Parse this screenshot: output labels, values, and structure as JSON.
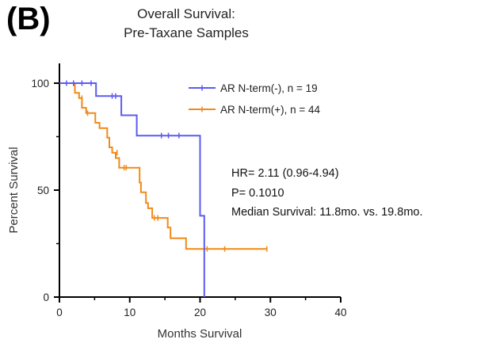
{
  "panel_label": "(B)",
  "chart_data": {
    "type": "line",
    "subtype": "kaplan-meier",
    "title_lines": [
      "Overall Survival:",
      "Pre-Taxane Samples"
    ],
    "xlabel": "Months Survival",
    "ylabel": "Percent Survival",
    "xlim": [
      0,
      40
    ],
    "ylim": [
      0,
      100
    ],
    "x_ticks": [
      0,
      10,
      20,
      30,
      40
    ],
    "y_ticks": [
      0,
      50,
      100
    ],
    "grid": false,
    "legend_position": "top-right",
    "series": [
      {
        "name": "AR N-term(-), n = 19",
        "color": "#5b5bf0",
        "steps": [
          [
            0,
            100
          ],
          [
            5.2,
            100
          ],
          [
            5.2,
            94
          ],
          [
            8.8,
            94
          ],
          [
            8.8,
            85
          ],
          [
            11.0,
            85
          ],
          [
            11.0,
            75.5
          ],
          [
            20.0,
            75.5
          ],
          [
            20.0,
            38
          ],
          [
            20.6,
            38
          ],
          [
            20.6,
            0
          ]
        ],
        "censored": [
          [
            1.0,
            100
          ],
          [
            2.0,
            100
          ],
          [
            3.2,
            100
          ],
          [
            4.5,
            100
          ],
          [
            7.5,
            94
          ],
          [
            8.0,
            94
          ],
          [
            14.5,
            75.5
          ],
          [
            15.5,
            75.5
          ],
          [
            17.0,
            75.5
          ]
        ]
      },
      {
        "name": "AR N-term(+), n = 44",
        "color": "#f08a1a",
        "steps": [
          [
            0,
            100
          ],
          [
            2.2,
            100
          ],
          [
            2.2,
            95.5
          ],
          [
            2.8,
            95.5
          ],
          [
            2.8,
            93
          ],
          [
            3.2,
            93
          ],
          [
            3.2,
            88.5
          ],
          [
            3.8,
            88.5
          ],
          [
            3.8,
            86
          ],
          [
            5.1,
            86
          ],
          [
            5.1,
            81.5
          ],
          [
            5.7,
            81.5
          ],
          [
            5.7,
            79
          ],
          [
            6.8,
            79
          ],
          [
            6.8,
            74.5
          ],
          [
            7.1,
            74.5
          ],
          [
            7.1,
            70
          ],
          [
            7.5,
            70
          ],
          [
            7.5,
            67.5
          ],
          [
            8.0,
            67.5
          ],
          [
            8.0,
            65
          ],
          [
            8.5,
            65
          ],
          [
            8.5,
            60.5
          ],
          [
            11.4,
            60.5
          ],
          [
            11.4,
            53.5
          ],
          [
            11.6,
            53.5
          ],
          [
            11.6,
            49
          ],
          [
            12.3,
            49
          ],
          [
            12.3,
            44
          ],
          [
            12.6,
            44
          ],
          [
            12.6,
            41.5
          ],
          [
            13.2,
            41.5
          ],
          [
            13.2,
            37
          ],
          [
            15.4,
            37
          ],
          [
            15.4,
            32.5
          ],
          [
            15.8,
            32.5
          ],
          [
            15.8,
            27.5
          ],
          [
            18.0,
            27.5
          ],
          [
            18.0,
            22.5
          ],
          [
            29.5,
            22.5
          ]
        ],
        "censored": [
          [
            3.2,
            93
          ],
          [
            4.0,
            86
          ],
          [
            8.2,
            67.5
          ],
          [
            9.2,
            60.5
          ],
          [
            9.5,
            60.5
          ],
          [
            13.5,
            37
          ],
          [
            14.0,
            37
          ],
          [
            21.0,
            22.5
          ],
          [
            23.5,
            22.5
          ],
          [
            29.5,
            22.5
          ]
        ]
      }
    ],
    "annotations": [
      "HR= 2.11 (0.96-4.94)",
      "P= 0.1010",
      "Median Survival: 11.8mo. vs. 19.8mo."
    ]
  }
}
